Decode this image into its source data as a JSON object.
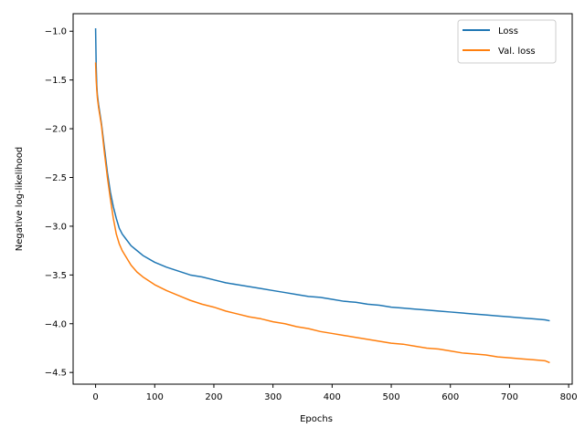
{
  "chart_data": {
    "type": "line",
    "title": "",
    "xlabel": "Epochs",
    "ylabel": "Negative log-likelihood",
    "xlim": [
      -38,
      806
    ],
    "ylim": [
      -4.62,
      -0.82
    ],
    "xticks": [
      0,
      100,
      200,
      300,
      400,
      500,
      600,
      700,
      800
    ],
    "yticks": [
      -1.0,
      -1.5,
      -2.0,
      -2.5,
      -3.0,
      -3.5,
      -4.0,
      -4.5
    ],
    "xtick_labels": [
      "0",
      "100",
      "200",
      "300",
      "400",
      "500",
      "600",
      "700",
      "800"
    ],
    "ytick_labels": [
      "−1.0",
      "−1.5",
      "−2.0",
      "−2.5",
      "−3.0",
      "−3.5",
      "−4.0",
      "−4.5"
    ],
    "grid": false,
    "legend_position": "top-right",
    "series": [
      {
        "name": "Loss",
        "color": "#1f77b4",
        "x": [
          0,
          1,
          2,
          3,
          5,
          10,
          15,
          20,
          25,
          30,
          35,
          40,
          45,
          50,
          60,
          70,
          80,
          100,
          120,
          140,
          160,
          180,
          200,
          220,
          240,
          260,
          280,
          300,
          320,
          340,
          360,
          380,
          400,
          420,
          440,
          460,
          480,
          500,
          520,
          540,
          560,
          580,
          600,
          620,
          640,
          660,
          680,
          700,
          720,
          740,
          760,
          768
        ],
        "y": [
          -0.97,
          -1.35,
          -1.55,
          -1.65,
          -1.75,
          -1.95,
          -2.2,
          -2.45,
          -2.65,
          -2.8,
          -2.92,
          -3.02,
          -3.08,
          -3.12,
          -3.2,
          -3.25,
          -3.3,
          -3.37,
          -3.42,
          -3.46,
          -3.5,
          -3.52,
          -3.55,
          -3.58,
          -3.6,
          -3.62,
          -3.64,
          -3.66,
          -3.68,
          -3.7,
          -3.72,
          -3.73,
          -3.75,
          -3.77,
          -3.78,
          -3.8,
          -3.81,
          -3.83,
          -3.84,
          -3.85,
          -3.86,
          -3.87,
          -3.88,
          -3.89,
          -3.9,
          -3.91,
          -3.92,
          -3.93,
          -3.94,
          -3.95,
          -3.96,
          -3.97
        ]
      },
      {
        "name": "Val. loss",
        "color": "#ff7f0e",
        "x": [
          0,
          1,
          2,
          3,
          5,
          10,
          15,
          20,
          25,
          30,
          35,
          40,
          45,
          50,
          60,
          70,
          80,
          100,
          120,
          140,
          160,
          180,
          200,
          220,
          240,
          260,
          280,
          300,
          320,
          340,
          360,
          380,
          400,
          420,
          440,
          460,
          480,
          500,
          520,
          540,
          560,
          580,
          600,
          620,
          640,
          660,
          680,
          700,
          720,
          740,
          760,
          768
        ],
        "y": [
          -1.32,
          -1.5,
          -1.6,
          -1.68,
          -1.78,
          -1.97,
          -2.25,
          -2.5,
          -2.72,
          -2.92,
          -3.08,
          -3.18,
          -3.25,
          -3.3,
          -3.4,
          -3.47,
          -3.52,
          -3.6,
          -3.66,
          -3.71,
          -3.76,
          -3.8,
          -3.83,
          -3.87,
          -3.9,
          -3.93,
          -3.95,
          -3.98,
          -4.0,
          -4.03,
          -4.05,
          -4.08,
          -4.1,
          -4.12,
          -4.14,
          -4.16,
          -4.18,
          -4.2,
          -4.21,
          -4.23,
          -4.25,
          -4.26,
          -4.28,
          -4.3,
          -4.31,
          -4.32,
          -4.34,
          -4.35,
          -4.36,
          -4.37,
          -4.38,
          -4.4
        ]
      }
    ]
  }
}
